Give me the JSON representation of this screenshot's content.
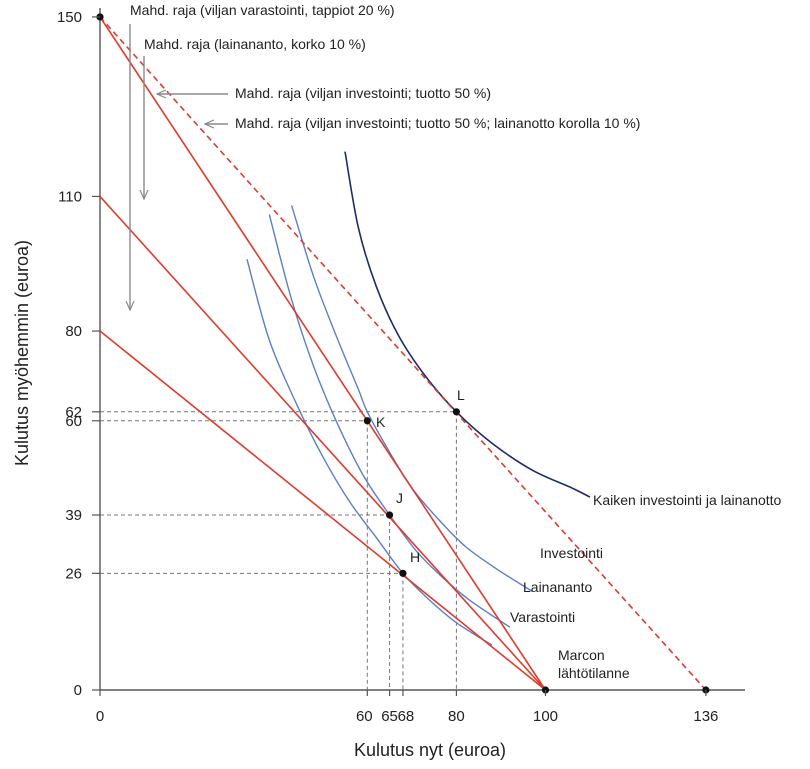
{
  "chart_data": {
    "type": "line",
    "xlabel": "Kulutus nyt (euroa)",
    "ylabel": "Kulutus myöhemmin (euroa)",
    "xlim": [
      0,
      145
    ],
    "ylim": [
      0,
      150
    ],
    "x_ticks": [
      {
        "value": 0,
        "label": "0"
      },
      {
        "value": 60,
        "label": "60"
      },
      {
        "value": 65,
        "label": "65"
      },
      {
        "value": 68,
        "label": "68"
      },
      {
        "value": 80,
        "label": "80"
      },
      {
        "value": 100,
        "label": "100"
      },
      {
        "value": 136,
        "label": "136"
      }
    ],
    "y_ticks": [
      {
        "value": 0,
        "label": "0"
      },
      {
        "value": 26,
        "label": "26"
      },
      {
        "value": 39,
        "label": "39"
      },
      {
        "value": 60,
        "label": "60"
      },
      {
        "value": 62,
        "label": "62"
      },
      {
        "value": 80,
        "label": "80"
      },
      {
        "value": 110,
        "label": "110"
      },
      {
        "value": 150,
        "label": "150"
      }
    ],
    "frontiers": [
      {
        "name": "Mahd. raja (viljan varastointi, tappiot 20 %)",
        "style": "solid",
        "x": [
          0,
          100
        ],
        "y": [
          80,
          0
        ]
      },
      {
        "name": "Mahd. raja (lainananto, korko 10 %)",
        "style": "solid",
        "x": [
          0,
          100
        ],
        "y": [
          110,
          0
        ]
      },
      {
        "name": "Mahd. raja  (viljan investointi; tuotto 50  %)",
        "style": "solid",
        "x": [
          0,
          100
        ],
        "y": [
          150,
          0
        ]
      },
      {
        "name": "Mahd. raja  (viljan investointi; tuotto 50 %; lainanotto korolla 10 %)",
        "style": "dashed",
        "x": [
          0,
          136
        ],
        "y": [
          150,
          0
        ]
      }
    ],
    "indifference_curves": [
      {
        "name": "Varastointi",
        "color": "#5b7fc7",
        "x": [
          33,
          38,
          44,
          50,
          56,
          62,
          68,
          74,
          80,
          88
        ],
        "y": [
          96,
          78,
          64,
          52,
          42,
          34,
          26,
          20,
          15,
          10
        ]
      },
      {
        "name": "Lainananto",
        "color": "#5b7fc7",
        "x": [
          38,
          43,
          48,
          53,
          59,
          65,
          71,
          77,
          83,
          92
        ],
        "y": [
          106,
          87,
          72,
          60,
          48,
          39,
          31,
          25,
          20,
          14
        ]
      },
      {
        "name": "Investointi",
        "color": "#5b7fc7",
        "x": [
          43,
          48,
          53,
          58,
          60,
          65,
          70,
          76,
          82,
          89,
          97
        ],
        "y": [
          108,
          92,
          79,
          67,
          62,
          53,
          45,
          38,
          32,
          27,
          22
        ]
      },
      {
        "name": "Kaiken investointi ja lainanotto",
        "color": "#1c2b6b",
        "x": [
          55,
          58,
          62,
          67,
          73,
          80,
          88,
          97,
          106,
          110
        ],
        "y": [
          120,
          103,
          90,
          79,
          70,
          62,
          55,
          49,
          45,
          43
        ]
      }
    ],
    "points": [
      {
        "label": "H",
        "x": 68,
        "y": 26
      },
      {
        "label": "J",
        "x": 65,
        "y": 39
      },
      {
        "label": "K",
        "x": 60,
        "y": 60
      },
      {
        "label": "L",
        "x": 80,
        "y": 62
      },
      {
        "label": "",
        "x": 0,
        "y": 150
      },
      {
        "label": "",
        "x": 136,
        "y": 0
      },
      {
        "label": "",
        "x": 100,
        "y": 0
      }
    ],
    "start_label": [
      "Marcon",
      "lähtötilanne"
    ],
    "colors": {
      "frontier": "#e03a2b",
      "indifference": "#5b7fc7",
      "indifference_top": "#1c2b6b",
      "guide": "#777777",
      "axis": "#555555"
    }
  }
}
